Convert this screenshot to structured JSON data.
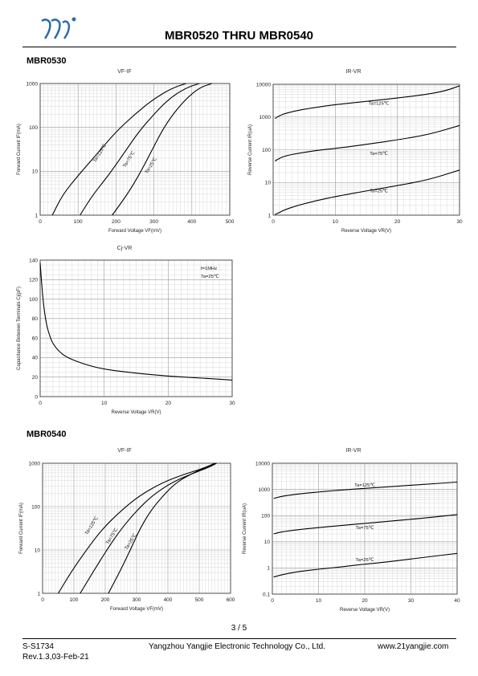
{
  "header": {
    "title": "MBR0520 THRU MBR0540"
  },
  "sections": {
    "s1": "MBR0530",
    "s2": "MBR0540"
  },
  "footer": {
    "page": "3 / 5",
    "doc_id": "S-S1734",
    "revision": "Rev.1.3,03-Feb-21",
    "company": "Yangzhou Yangjie Electronic Technology Co., Ltd.",
    "website": "www.21yangjie.com"
  },
  "colors": {
    "curve": "#000000",
    "grid_major": "#9a9a9a",
    "grid_minor": "#d0d0d0",
    "axis": "#404040",
    "logo": "#2b6cb0"
  },
  "icons": {
    "logo": "yangjie-logo-icon"
  },
  "chart_data": [
    {
      "id": "c1",
      "type": "line",
      "title": "VF-IF",
      "xlabel": "Forward Voltage   VF(mV)",
      "ylabel": "Forward Current   IF(mA)",
      "xlim": [
        0,
        500
      ],
      "ylim": [
        1,
        1000
      ],
      "yscale": "log",
      "grid": true,
      "xticks": [
        0,
        100,
        200,
        300,
        400,
        500
      ],
      "yticks": [
        1,
        10,
        100,
        1000
      ],
      "series": [
        {
          "name": "Ta=125℃",
          "x": [
            32,
            60,
            100,
            150,
            200,
            250,
            300,
            350,
            385
          ],
          "y": [
            1,
            3,
            8,
            25,
            80,
            200,
            450,
            800,
            1000
          ],
          "lx": 160,
          "ly": 25,
          "rot": -58
        },
        {
          "name": "Ta=75℃",
          "x": [
            105,
            140,
            180,
            220,
            260,
            300,
            340,
            385,
            420
          ],
          "y": [
            1,
            3,
            8,
            25,
            80,
            200,
            450,
            800,
            1000
          ],
          "lx": 237,
          "ly": 18,
          "rot": -58
        },
        {
          "name": "Ta=25℃",
          "x": [
            190,
            230,
            260,
            290,
            320,
            350,
            385,
            420,
            453
          ],
          "y": [
            1,
            3,
            8,
            25,
            80,
            200,
            450,
            800,
            1000
          ],
          "lx": 295,
          "ly": 13,
          "rot": -58
        }
      ]
    },
    {
      "id": "c2",
      "type": "line",
      "title": "IR-VR",
      "xlabel": "Reverse Voltage   VR(V)",
      "ylabel": "Reverse Current   IR(uA)",
      "xlim": [
        0,
        30
      ],
      "ylim": [
        1,
        10000
      ],
      "yscale": "log",
      "grid": true,
      "xticks": [
        0,
        10,
        20,
        30
      ],
      "yticks": [
        1,
        10,
        100,
        1000,
        10000
      ],
      "series": [
        {
          "name": "Ta=125℃",
          "x": [
            0.3,
            1,
            2,
            4,
            7,
            10,
            15,
            20,
            25,
            28,
            30
          ],
          "y": [
            900,
            1100,
            1300,
            1600,
            2000,
            2400,
            3000,
            3800,
            5000,
            6500,
            9000
          ],
          "lx": 17,
          "ly": 2400,
          "rot": 0
        },
        {
          "name": "Ta=75℃",
          "x": [
            0.3,
            1,
            2,
            4,
            7,
            10,
            15,
            20,
            25,
            30
          ],
          "y": [
            45,
            55,
            65,
            78,
            95,
            110,
            145,
            200,
            290,
            550
          ],
          "lx": 17,
          "ly": 70,
          "rot": 0
        },
        {
          "name": "Ta=25℃",
          "x": [
            0.3,
            1,
            2,
            4,
            7,
            10,
            15,
            20,
            25,
            30
          ],
          "y": [
            1.05,
            1.2,
            1.5,
            2,
            2.8,
            3.7,
            5.5,
            8,
            12,
            24
          ],
          "lx": 17,
          "ly": 5,
          "rot": 0
        }
      ]
    },
    {
      "id": "c3",
      "type": "line",
      "title": "Cj-VR",
      "xlabel": "Reverse Voltage   VR(V)",
      "ylabel": "Capacitance Between Terminals Cj(pF)",
      "xlim": [
        0,
        30
      ],
      "ylim": [
        0,
        140
      ],
      "yscale": "linear",
      "grid": true,
      "xticks": [
        0,
        10,
        20,
        30
      ],
      "yticks": [
        0,
        20,
        40,
        60,
        80,
        100,
        120,
        140
      ],
      "notes": [
        "f=1MHz",
        "Ta=25℃"
      ],
      "series": [
        {
          "name": "",
          "x": [
            0,
            0.3,
            0.6,
            1,
            1.5,
            2,
            3,
            4,
            5,
            7,
            10,
            15,
            20,
            25,
            30
          ],
          "y": [
            137,
            110,
            90,
            73,
            62,
            54,
            46,
            41,
            38,
            33,
            28,
            24,
            21,
            19,
            17
          ]
        }
      ]
    },
    {
      "id": "c4",
      "type": "line",
      "title": "VF-IF",
      "xlabel": "Forward Voltage   VF(mV)",
      "ylabel": "Forward Current   IF(mA)",
      "xlim": [
        0,
        600
      ],
      "ylim": [
        1,
        1000
      ],
      "yscale": "log",
      "grid": true,
      "xticks": [
        0,
        100,
        200,
        300,
        400,
        500,
        600
      ],
      "yticks": [
        1,
        10,
        100,
        1000
      ],
      "series": [
        {
          "name": "Ta=125℃",
          "x": [
            50,
            90,
            140,
            190,
            250,
            310,
            380,
            450,
            510,
            550
          ],
          "y": [
            1,
            3,
            10,
            30,
            80,
            180,
            350,
            550,
            750,
            1000
          ],
          "lx": 160,
          "ly": 35,
          "rot": -58
        },
        {
          "name": "Ta=75℃",
          "x": [
            120,
            160,
            205,
            250,
            300,
            350,
            410,
            470,
            530,
            555
          ],
          "y": [
            1,
            3,
            10,
            30,
            80,
            180,
            350,
            550,
            800,
            1000
          ],
          "lx": 225,
          "ly": 20,
          "rot": -58
        },
        {
          "name": "Ta=25℃",
          "x": [
            210,
            245,
            280,
            310,
            345,
            385,
            425,
            470,
            520,
            555
          ],
          "y": [
            1,
            3,
            10,
            30,
            80,
            180,
            350,
            550,
            800,
            1000
          ],
          "lx": 285,
          "ly": 15,
          "rot": -58
        }
      ]
    },
    {
      "id": "c5",
      "type": "line",
      "title": "IR-VR",
      "xlabel": "Reverse Voltage   VR(V)",
      "ylabel": "Reverse Current   IR(uA)",
      "xlim": [
        0,
        40
      ],
      "ylim": [
        0.1,
        10000
      ],
      "yscale": "log",
      "grid": true,
      "xticks": [
        0,
        10,
        20,
        30,
        40
      ],
      "yticks": [
        0.1,
        1,
        10,
        100,
        1000,
        10000
      ],
      "series": [
        {
          "name": "Ta=125℃",
          "x": [
            0.3,
            2,
            5,
            10,
            15,
            20,
            25,
            30,
            35,
            40
          ],
          "y": [
            450,
            550,
            650,
            800,
            950,
            1100,
            1250,
            1450,
            1650,
            1900
          ],
          "lx": 20,
          "ly": 1300,
          "rot": 0
        },
        {
          "name": "Ta=75℃",
          "x": [
            0.3,
            2,
            5,
            10,
            15,
            20,
            25,
            30,
            35,
            40
          ],
          "y": [
            20,
            24,
            28,
            35,
            42,
            50,
            60,
            72,
            88,
            110
          ],
          "lx": 20,
          "ly": 30,
          "rot": 0
        },
        {
          "name": "Ta=25℃",
          "x": [
            0.3,
            2,
            5,
            10,
            15,
            20,
            25,
            30,
            35,
            40
          ],
          "y": [
            0.45,
            0.55,
            0.7,
            0.9,
            1.1,
            1.4,
            1.7,
            2.2,
            2.8,
            3.6
          ],
          "lx": 20,
          "ly": 1.8,
          "rot": 0
        }
      ]
    }
  ]
}
